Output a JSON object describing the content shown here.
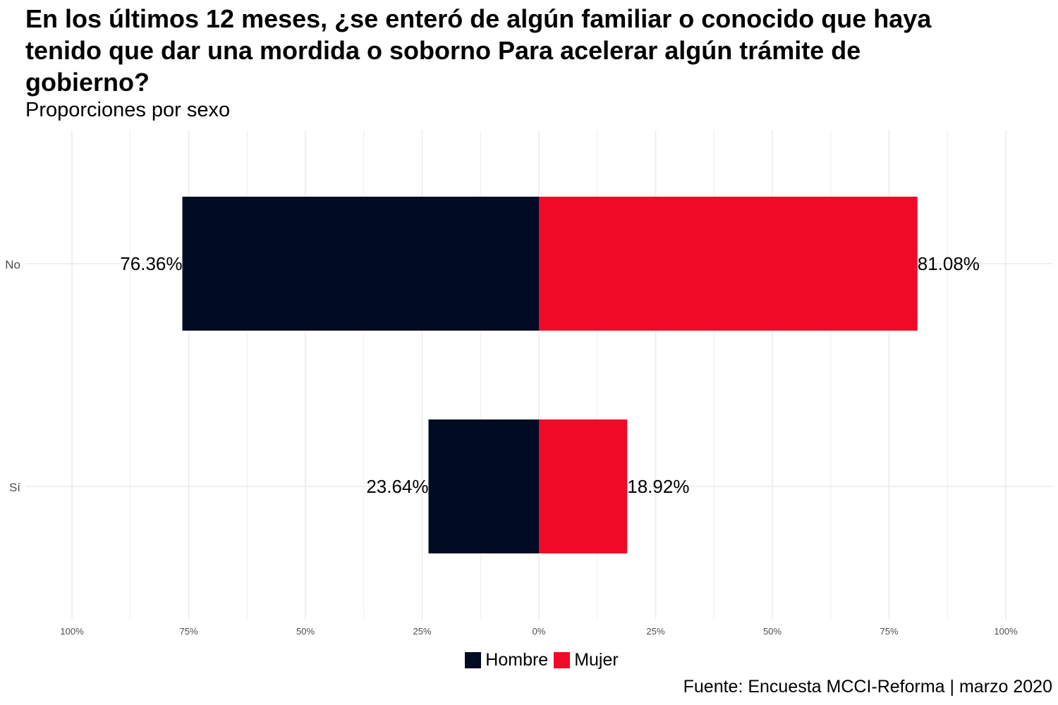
{
  "title": "En los últimos 12 meses, ¿se enteró de algún familiar o conocido que haya tenido que dar una mordida o soborno Para acelerar algún trámite de gobierno?",
  "subtitle": "Proporciones por sexo",
  "caption": "Fuente: Encuesta MCCI-Reforma | marzo 2020",
  "colors": {
    "Hombre": "#000c24",
    "Mujer": "#f00a28",
    "grid": "#ebebeb"
  },
  "chart_data": {
    "type": "bar",
    "orientation": "horizontal-diverging",
    "categories": [
      "No",
      "Sí"
    ],
    "series": [
      {
        "name": "Hombre",
        "values": [
          76.36,
          23.64
        ],
        "labels": [
          "76.36%",
          "23.64%"
        ]
      },
      {
        "name": "Mujer",
        "values": [
          81.08,
          18.92
        ],
        "labels": [
          "81.08%",
          "18.92%"
        ]
      }
    ],
    "xlim": [
      -100,
      100
    ],
    "x_ticks": [
      "100%",
      "75%",
      "50%",
      "25%",
      "0%",
      "25%",
      "50%",
      "75%",
      "100%"
    ],
    "grid": true,
    "legend_position": "bottom"
  }
}
